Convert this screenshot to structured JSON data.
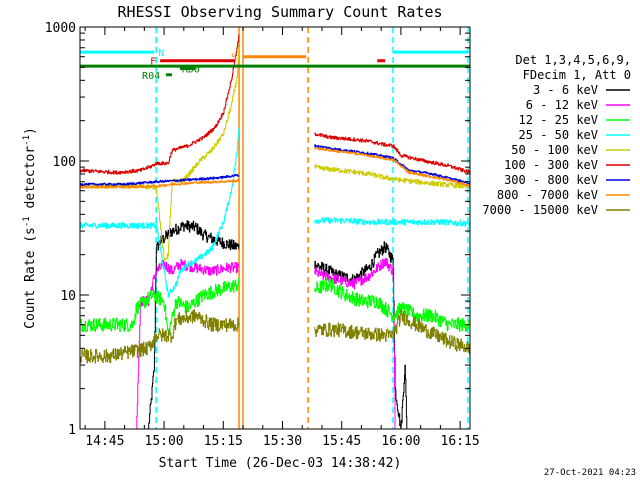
{
  "chart_data": {
    "type": "line",
    "title": "RHESSI Observing Summary Count Rates",
    "xlabel": "Start Time (26-Dec-03 14:38:42)",
    "ylabel": "Count Rate (s^-1 detector^-1)",
    "ylabel_parts": {
      "main": "Count Rate (s",
      "sup1": "-1",
      "mid": " detector",
      "sup2": "-1",
      "end": ")"
    },
    "yscale": "log",
    "ylim": [
      1,
      1000
    ],
    "xlim": [
      "14:38:42",
      "16:17:30"
    ],
    "x_ticks": [
      "14:45",
      "15:00",
      "15:15",
      "15:30",
      "15:45",
      "16:00",
      "16:15"
    ],
    "y_ticks": [
      "1",
      "10",
      "100",
      "1000"
    ],
    "timestamp": "27-Oct-2021 04:23",
    "legend": {
      "placement": "right",
      "header": [
        "Det 1,3,4,5,6,9,",
        "FDecim 1, Att 0"
      ],
      "entries": [
        {
          "label": "3 - 6 keV",
          "color": "#000000"
        },
        {
          "label": "6 - 12 keV",
          "color": "#ff00ff"
        },
        {
          "label": "12 - 25 keV",
          "color": "#00ff00"
        },
        {
          "label": "25 - 50 keV",
          "color": "#00ffff"
        },
        {
          "label": "50 - 100 keV",
          "color": "#cccc00"
        },
        {
          "label": "100 - 300 keV",
          "color": "#dd0000"
        },
        {
          "label": "300 - 800 keV",
          "color": "#0000dd"
        },
        {
          "label": "800 - 7000 keV",
          "color": "#ff8800"
        },
        {
          "label": "7000 - 15000 keV",
          "color": "#808000"
        }
      ]
    },
    "flags": [
      {
        "label": "N",
        "color": "#00ffff",
        "segments": [
          [
            "14:38:42",
            "14:57:30"
          ],
          [
            "15:58:00",
            "16:17:00"
          ]
        ],
        "y": 650
      },
      {
        "label": "S",
        "color": "#ff8800",
        "segments": [
          [
            "15:20:00",
            "15:36:00"
          ]
        ],
        "y": 600
      },
      {
        "label": "F",
        "color": "#dd0000",
        "segments": [
          [
            "14:59:00",
            "15:18:00"
          ],
          [
            "15:54:00",
            "15:56:00"
          ]
        ],
        "y": 560
      },
      {
        "label": "",
        "color": "#008000",
        "segments": [
          [
            "14:38:42",
            "16:17:30"
          ]
        ],
        "y": 510
      },
      {
        "label": "RD0",
        "color": "#008000",
        "segments": [
          [
            "15:04:00",
            "15:08:00"
          ]
        ],
        "y": 490
      },
      {
        "label": "R04",
        "color": "#008000",
        "segments": [
          [
            "15:00:30",
            "15:02:00"
          ]
        ],
        "y": 440
      }
    ],
    "vlines": [
      {
        "time": "14:58:00",
        "color": "#00ffff",
        "style": "dashed"
      },
      {
        "time": "15:19:00",
        "color": "#ff8800",
        "style": "solid"
      },
      {
        "time": "15:20:00",
        "color": "#ff8800",
        "style": "solid"
      },
      {
        "time": "15:36:30",
        "color": "#ff8800",
        "style": "dashed"
      },
      {
        "time": "15:58:00",
        "color": "#00ffff",
        "style": "dashed"
      },
      {
        "time": "16:17:00",
        "color": "#00ffff",
        "style": "dashed"
      }
    ],
    "gap": [
      "15:19:00",
      "15:38:00"
    ],
    "series": [
      {
        "name": "3 - 6 keV",
        "color": "#000000",
        "noise": 0.1,
        "points": [
          [
            "14:38:42",
            1
          ],
          [
            "14:56:00",
            1
          ],
          [
            "14:57:00",
            2
          ],
          [
            "14:57:30",
            3
          ],
          [
            "14:58:00",
            22
          ],
          [
            "14:59:00",
            25
          ],
          [
            "15:02:00",
            30
          ],
          [
            "15:05:00",
            33
          ],
          [
            "15:08:00",
            32
          ],
          [
            "15:10:00",
            28
          ],
          [
            "15:14:00",
            25
          ],
          [
            "15:18:00",
            23
          ],
          [
            "15:19:00",
            23
          ],
          [
            "15:38:00",
            17
          ],
          [
            "15:40:00",
            16
          ],
          [
            "15:44:00",
            14
          ],
          [
            "15:48:00",
            13
          ],
          [
            "15:52:00",
            16
          ],
          [
            "15:54:00",
            20
          ],
          [
            "15:56:00",
            23
          ],
          [
            "15:58:00",
            18
          ],
          [
            "15:58:30",
            2
          ],
          [
            "16:00:00",
            1
          ],
          [
            "16:01:00",
            3
          ],
          [
            "16:01:30",
            1
          ],
          [
            "16:17:30",
            1
          ]
        ]
      },
      {
        "name": "6 - 12 keV",
        "color": "#ff00ff",
        "noise": 0.09,
        "points": [
          [
            "14:38:42",
            1
          ],
          [
            "14:53:00",
            1
          ],
          [
            "14:54:00",
            9
          ],
          [
            "14:56:00",
            9
          ],
          [
            "14:57:00",
            12
          ],
          [
            "14:58:00",
            15
          ],
          [
            "15:00:00",
            17
          ],
          [
            "15:02:00",
            15
          ],
          [
            "15:04:00",
            17
          ],
          [
            "15:08:00",
            16
          ],
          [
            "15:12:00",
            15
          ],
          [
            "15:16:00",
            16
          ],
          [
            "15:19:00",
            16
          ],
          [
            "15:38:00",
            15
          ],
          [
            "15:40:00",
            14
          ],
          [
            "15:44:00",
            13
          ],
          [
            "15:48:00",
            12
          ],
          [
            "15:52:00",
            14
          ],
          [
            "15:56:00",
            18
          ],
          [
            "15:58:00",
            15
          ],
          [
            "15:58:30",
            1
          ],
          [
            "16:17:30",
            1
          ]
        ]
      },
      {
        "name": "12 - 25 keV",
        "color": "#00ff00",
        "noise": 0.12,
        "points": [
          [
            "14:38:42",
            6
          ],
          [
            "14:52:00",
            6
          ],
          [
            "14:53:00",
            8
          ],
          [
            "14:57:00",
            10
          ],
          [
            "15:00:00",
            9
          ],
          [
            "15:01:00",
            5
          ],
          [
            "15:03:00",
            9
          ],
          [
            "15:06:00",
            8
          ],
          [
            "15:08:00",
            9
          ],
          [
            "15:10:00",
            10
          ],
          [
            "15:14:00",
            11
          ],
          [
            "15:19:00",
            12
          ],
          [
            "15:38:00",
            11
          ],
          [
            "15:42:00",
            12
          ],
          [
            "15:46:00",
            10
          ],
          [
            "15:50:00",
            9
          ],
          [
            "15:54:00",
            9
          ],
          [
            "15:58:00",
            7
          ],
          [
            "16:00:00",
            8
          ],
          [
            "16:04:00",
            7
          ],
          [
            "16:08:00",
            7
          ],
          [
            "16:12:00",
            6
          ],
          [
            "16:17:30",
            6
          ]
        ]
      },
      {
        "name": "25 - 50 keV",
        "color": "#00ffff",
        "noise": 0.05,
        "points": [
          [
            "14:38:42",
            33
          ],
          [
            "14:50:00",
            33
          ],
          [
            "14:58:00",
            33
          ],
          [
            "15:01:00",
            10
          ],
          [
            "15:03:00",
            12
          ],
          [
            "15:04:00",
            15
          ],
          [
            "15:06:00",
            17
          ],
          [
            "15:08:00",
            18
          ],
          [
            "15:12:00",
            22
          ],
          [
            "15:15:00",
            35
          ],
          [
            "15:17:00",
            60
          ],
          [
            "15:18:30",
            120
          ],
          [
            "15:19:00",
            200
          ],
          [
            "15:38:00",
            36
          ],
          [
            "15:45:00",
            36
          ],
          [
            "15:52:00",
            35
          ],
          [
            "16:00:00",
            35
          ],
          [
            "16:10:00",
            35
          ],
          [
            "16:17:30",
            34
          ]
        ]
      },
      {
        "name": "50 - 100 keV",
        "color": "#cccc00",
        "noise": 0.04,
        "points": [
          [
            "14:38:42",
            65
          ],
          [
            "14:50:00",
            65
          ],
          [
            "14:58:00",
            64
          ],
          [
            "15:00:00",
            18
          ],
          [
            "15:01:00",
            20
          ],
          [
            "15:02:00",
            70
          ],
          [
            "15:05:00",
            72
          ],
          [
            "15:09:00",
            100
          ],
          [
            "15:12:00",
            120
          ],
          [
            "15:15:00",
            160
          ],
          [
            "15:17:00",
            260
          ],
          [
            "15:18:30",
            420
          ],
          [
            "15:19:00",
            800
          ],
          [
            "15:38:00",
            90
          ],
          [
            "15:40:00",
            88
          ],
          [
            "15:45:00",
            85
          ],
          [
            "15:52:00",
            80
          ],
          [
            "15:56:00",
            75
          ],
          [
            "16:00:00",
            72
          ],
          [
            "16:08:00",
            68
          ],
          [
            "16:15:00",
            65
          ],
          [
            "16:17:30",
            64
          ]
        ]
      },
      {
        "name": "100 - 300 keV",
        "color": "#dd0000",
        "noise": 0.03,
        "points": [
          [
            "14:38:42",
            85
          ],
          [
            "14:48:00",
            82
          ],
          [
            "14:54:00",
            85
          ],
          [
            "14:57:00",
            92
          ],
          [
            "14:58:00",
            96
          ],
          [
            "15:01:00",
            96
          ],
          [
            "15:02:00",
            120
          ],
          [
            "15:06:00",
            130
          ],
          [
            "15:10:00",
            150
          ],
          [
            "15:13:00",
            180
          ],
          [
            "15:15:00",
            230
          ],
          [
            "15:17:00",
            400
          ],
          [
            "15:18:30",
            700
          ],
          [
            "15:19:00",
            900
          ],
          [
            "15:38:00",
            160
          ],
          [
            "15:42:00",
            150
          ],
          [
            "15:48:00",
            145
          ],
          [
            "15:52:00",
            140
          ],
          [
            "15:56:00",
            132
          ],
          [
            "15:58:00",
            130
          ],
          [
            "16:00:00",
            110
          ],
          [
            "16:06:00",
            100
          ],
          [
            "16:12:00",
            92
          ],
          [
            "16:17:30",
            82
          ]
        ]
      },
      {
        "name": "300 - 800 keV",
        "color": "#0000dd",
        "noise": 0.02,
        "points": [
          [
            "14:38:42",
            67
          ],
          [
            "14:50:00",
            67
          ],
          [
            "14:58:00",
            70
          ],
          [
            "15:02:00",
            71
          ],
          [
            "15:08:00",
            73
          ],
          [
            "15:14:00",
            75
          ],
          [
            "15:18:00",
            78
          ],
          [
            "15:19:00",
            78
          ],
          [
            "15:38:00",
            130
          ],
          [
            "15:44:00",
            122
          ],
          [
            "15:50:00",
            116
          ],
          [
            "15:56:00",
            108
          ],
          [
            "15:58:00",
            105
          ],
          [
            "16:02:00",
            85
          ],
          [
            "16:08:00",
            80
          ],
          [
            "16:14:00",
            72
          ],
          [
            "16:17:30",
            68
          ]
        ]
      },
      {
        "name": "800 - 7000 keV",
        "color": "#ff8800",
        "noise": 0.02,
        "points": [
          [
            "14:38:42",
            64
          ],
          [
            "14:50:00",
            64
          ],
          [
            "14:58:00",
            65
          ],
          [
            "15:02:00",
            67
          ],
          [
            "15:08:00",
            69
          ],
          [
            "15:14:00",
            70
          ],
          [
            "15:18:00",
            71
          ],
          [
            "15:19:00",
            72
          ],
          [
            "15:38:00",
            125
          ],
          [
            "15:44:00",
            118
          ],
          [
            "15:50:00",
            112
          ],
          [
            "15:56:00",
            104
          ],
          [
            "15:58:00",
            102
          ],
          [
            "16:02:00",
            82
          ],
          [
            "16:08:00",
            76
          ],
          [
            "16:14:00",
            70
          ],
          [
            "16:17:30",
            65
          ]
        ]
      },
      {
        "name": "7000 - 15000 keV",
        "color": "#808000",
        "noise": 0.12,
        "points": [
          [
            "14:38:42",
            3.5
          ],
          [
            "14:46:00",
            3.5
          ],
          [
            "14:52:00",
            3.8
          ],
          [
            "14:56:00",
            4.0
          ],
          [
            "14:58:00",
            5.0
          ],
          [
            "15:02:00",
            5.0
          ],
          [
            "15:03:00",
            6.5
          ],
          [
            "15:08:00",
            7.0
          ],
          [
            "15:12:00",
            6.0
          ],
          [
            "15:19:00",
            6.0
          ],
          [
            "15:38:00",
            5.5
          ],
          [
            "15:44:00",
            5.5
          ],
          [
            "15:50:00",
            5.2
          ],
          [
            "15:56:00",
            5.0
          ],
          [
            "15:58:00",
            5.0
          ],
          [
            "16:00:00",
            7.0
          ],
          [
            "16:06:00",
            5.5
          ],
          [
            "16:12:00",
            4.5
          ],
          [
            "16:17:30",
            4.0
          ]
        ]
      }
    ]
  }
}
